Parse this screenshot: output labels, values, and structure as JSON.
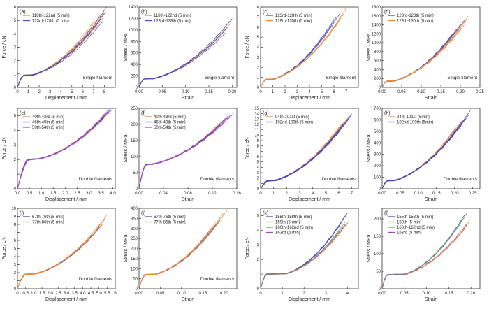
{
  "colors": {
    "blue": "#4a4ab4",
    "orange": "#ec8a3c",
    "purple": "#a24ec0",
    "green": "#6aa06a",
    "axis": "#333333"
  },
  "chart_data": [
    {
      "id": "a",
      "type": "line",
      "panel_label": "(a)",
      "xlabel": "Displacement / mm",
      "ylabel": "Force / cN",
      "xlim": [
        0,
        9
      ],
      "ylim": [
        0,
        6
      ],
      "xticks": [
        "0",
        "1",
        "2",
        "3",
        "4",
        "5",
        "6",
        "7",
        "8"
      ],
      "yticks": [
        "0",
        "1",
        "2",
        "3",
        "4",
        "5",
        "6"
      ],
      "annotation": "Single filament",
      "legend_position": "top-left",
      "curve": {
        "yield_x": 0.6,
        "plateau": 0.9,
        "flat": 0.8
      },
      "series": [
        {
          "name": "118th-122nd (5 min)",
          "color": "orange",
          "ends": [
            7.1,
            7.6,
            7.9,
            8.0,
            8.1
          ],
          "end_y": [
            5.0,
            5.4,
            5.2,
            5.6,
            5.9
          ]
        },
        {
          "name": "123rd-128th (5 min)",
          "color": "blue",
          "ends": [
            7.4,
            7.8,
            8.1,
            7.9,
            8.2
          ],
          "end_y": [
            4.8,
            5.3,
            5.6,
            5.0,
            6.0
          ]
        }
      ]
    },
    {
      "id": "b",
      "type": "line",
      "panel_label": "(b)",
      "xlabel": "Strain",
      "ylabel": "Stress / MPa",
      "xlim": [
        0,
        0.21
      ],
      "ylim": [
        0,
        1400
      ],
      "xticks": [
        "0.00",
        "0.05",
        "0.10",
        "0.15",
        "0.20"
      ],
      "yticks": [
        "0",
        "200",
        "400",
        "600",
        "800",
        "1000",
        "1200",
        "1400"
      ],
      "annotation": "Single filament",
      "legend_position": "top-left",
      "curve": {
        "yield_x": 0.012,
        "plateau": 150,
        "flat": 0.02
      },
      "series": [
        {
          "name": "118th-122nd (5 min)",
          "color": "orange",
          "ends": [
            0.175,
            0.185,
            0.19,
            0.195
          ],
          "end_y": [
            900,
            1000,
            1050,
            1100
          ]
        },
        {
          "name": "123rd-128th (5 min)",
          "color": "blue",
          "ends": [
            0.185,
            0.19,
            0.195,
            0.2
          ],
          "end_y": [
            950,
            1050,
            1150,
            1200
          ]
        }
      ]
    },
    {
      "id": "c",
      "type": "line",
      "panel_label": "(c)",
      "xlabel": "Displacement / mm",
      "ylabel": "Force / cN",
      "xlim": [
        0,
        8
      ],
      "ylim": [
        0,
        8
      ],
      "xticks": [
        "0",
        "1",
        "2",
        "3",
        "4",
        "5",
        "6",
        "7"
      ],
      "yticks": [
        "0",
        "1",
        "2",
        "3",
        "4",
        "5",
        "6",
        "7",
        "8"
      ],
      "annotation": "Single filament",
      "legend_position": "top-left",
      "curve": {
        "yield_x": 0.5,
        "plateau": 0.8,
        "flat": 0.6
      },
      "series": [
        {
          "name": "123rd-128th (5 min)",
          "color": "blue",
          "ends": [
            5.8,
            6.0,
            6.2,
            6.5
          ],
          "end_y": [
            6.2,
            6.8,
            7.0,
            7.4
          ]
        },
        {
          "name": "129th-135th (5 min)",
          "color": "orange",
          "ends": [
            6.3,
            6.6,
            6.8,
            7.0
          ],
          "end_y": [
            6.4,
            7.0,
            7.3,
            7.9
          ]
        }
      ]
    },
    {
      "id": "d",
      "type": "line",
      "panel_label": "(d)",
      "xlabel": "Strain",
      "ylabel": "Stress / MPa",
      "xlim": [
        0,
        0.25
      ],
      "ylim": [
        0,
        1800
      ],
      "xticks": [
        "0.00",
        "0.05",
        "0.10",
        "0.15",
        "0.20",
        "0.25"
      ],
      "yticks": [
        "0",
        "200",
        "400",
        "600",
        "800",
        "1000",
        "1200",
        "1400",
        "1600",
        "1800"
      ],
      "annotation": "Single filament",
      "legend_position": "top-left",
      "curve": {
        "yield_x": 0.012,
        "plateau": 140,
        "flat": 0.02
      },
      "series": [
        {
          "name": "123rd-128th (5 min)",
          "color": "blue",
          "ends": [
            0.18,
            0.19,
            0.2,
            0.21
          ],
          "end_y": [
            1200,
            1300,
            1400,
            1500
          ]
        },
        {
          "name": "129th-135th (5 min)",
          "color": "orange",
          "ends": [
            0.2,
            0.21,
            0.215,
            0.22
          ],
          "end_y": [
            1300,
            1400,
            1500,
            1600
          ]
        }
      ]
    },
    {
      "id": "e",
      "type": "line",
      "panel_label": "(e)",
      "xlabel": "Displacement / mm",
      "ylabel": "Force / cN",
      "xlim": [
        0,
        4.1
      ],
      "ylim": [
        0,
        5.5
      ],
      "xticks": [
        "0.0",
        "0.5",
        "1.0",
        "1.5",
        "2.0",
        "2.5",
        "3.0",
        "3.5",
        "4.0"
      ],
      "yticks": [
        "0",
        "1",
        "2",
        "3",
        "4",
        "5"
      ],
      "annotation": "Double filaments",
      "legend_position": "top-left",
      "curve": {
        "yield_x": 0.5,
        "plateau": 2.0,
        "flat": 0.45
      },
      "series": [
        {
          "name": "40th-43rd (5 min)",
          "color": "orange",
          "ends": [
            3.5,
            3.6,
            3.7,
            3.8
          ],
          "end_y": [
            4.8,
            5.0,
            5.2,
            5.4
          ]
        },
        {
          "name": "46th-49th (5 min)",
          "color": "blue",
          "ends": [
            3.6,
            3.7,
            3.8,
            3.9
          ],
          "end_y": [
            4.9,
            5.1,
            5.3,
            5.5
          ]
        },
        {
          "name": "50th-54th (5 min)",
          "color": "purple",
          "ends": [
            3.7,
            3.8,
            3.9,
            4.0
          ],
          "end_y": [
            5.0,
            5.2,
            5.4,
            5.5
          ]
        }
      ]
    },
    {
      "id": "f",
      "type": "line",
      "panel_label": "(f)",
      "xlabel": "Strain",
      "ylabel": "Stress / MPa",
      "xlim": [
        0,
        0.16
      ],
      "ylim": [
        0,
        250
      ],
      "xticks": [
        "0.00",
        "0.04",
        "0.08",
        "0.12",
        "0.16"
      ],
      "yticks": [
        "0",
        "50",
        "100",
        "150",
        "200",
        "250"
      ],
      "annotation": "Double filaments",
      "legend_position": "top-left",
      "curve": {
        "yield_x": 0.012,
        "plateau": 75,
        "flat": 0.012
      },
      "series": [
        {
          "name": "40th-43rd (5 min)",
          "color": "orange",
          "ends": [
            0.13,
            0.135,
            0.14,
            0.145
          ],
          "end_y": [
            200,
            210,
            215,
            225
          ]
        },
        {
          "name": "46th-49th (5 min)",
          "color": "blue",
          "ends": [
            0.135,
            0.14,
            0.145,
            0.15
          ],
          "end_y": [
            205,
            215,
            225,
            230
          ]
        },
        {
          "name": "50th-54th (5 min)",
          "color": "purple",
          "ends": [
            0.14,
            0.145,
            0.15,
            0.155
          ],
          "end_y": [
            210,
            220,
            230,
            235
          ]
        }
      ]
    },
    {
      "id": "g",
      "type": "line",
      "panel_label": "(g)",
      "xlabel": "Displacement / mm",
      "ylabel": "Force / cN",
      "xlim": [
        0,
        7.5
      ],
      "ylim": [
        0,
        15
      ],
      "xticks": [
        "0",
        "1",
        "2",
        "3",
        "4",
        "5",
        "6",
        "7"
      ],
      "yticks": [
        "0",
        "1",
        "2",
        "3",
        "4",
        "5",
        "6",
        "7",
        "8",
        "9",
        "10",
        "11",
        "12",
        "13",
        "14",
        "15"
      ],
      "annotation": "Double filaments",
      "legend_position": "top-left",
      "curve": {
        "yield_x": 0.6,
        "plateau": 1.5,
        "flat": 0.5
      },
      "series": [
        {
          "name": "94th-101st (5 min)",
          "color": "orange",
          "ends": [
            5.8,
            6.0,
            6.2,
            6.4,
            6.6,
            6.8
          ],
          "end_y": [
            10.5,
            11.5,
            12.0,
            12.5,
            13.0,
            13.5
          ]
        },
        {
          "name": "102nd-109th (5 min)",
          "color": "blue",
          "ends": [
            6.0,
            6.3,
            6.5,
            6.7,
            6.9,
            7.0
          ],
          "end_y": [
            11.0,
            12.0,
            12.5,
            13.0,
            13.5,
            14.0
          ]
        }
      ]
    },
    {
      "id": "h",
      "type": "line",
      "panel_label": "(h)",
      "xlabel": "Strain",
      "ylabel": "Stress / MPa",
      "xlim": [
        0,
        0.27
      ],
      "ylim": [
        0,
        700
      ],
      "xticks": [
        "0.00",
        "0.05",
        "0.10",
        "0.15",
        "0.20",
        "0.25"
      ],
      "yticks": [
        "0",
        "100",
        "200",
        "300",
        "400",
        "500",
        "600",
        "700"
      ],
      "annotation": "Double filaments",
      "legend_position": "top-left",
      "curve": {
        "yield_x": 0.015,
        "plateau": 70,
        "flat": 0.02
      },
      "series": [
        {
          "name": "94th-101st (5min)",
          "color": "orange",
          "ends": [
            0.2,
            0.21,
            0.22,
            0.23,
            0.235
          ],
          "end_y": [
            520,
            560,
            590,
            620,
            650
          ]
        },
        {
          "name": "102nd-109th (5min)",
          "color": "blue",
          "ends": [
            0.21,
            0.22,
            0.23,
            0.24,
            0.245
          ],
          "end_y": [
            540,
            580,
            610,
            650,
            690
          ]
        }
      ]
    },
    {
      "id": "i",
      "type": "line",
      "panel_label": "(i)",
      "xlabel": "Displacement / mm",
      "ylabel": "Force / cN",
      "xlim": [
        0,
        6
      ],
      "ylim": [
        0,
        10
      ],
      "xticks": [
        "0",
        "0.5",
        "1.0",
        "1.5",
        "2.0",
        "2.5",
        "3.0",
        "3.5",
        "4.0",
        "4.5",
        "5.0",
        "5.5",
        "6"
      ],
      "yticks": [
        "0",
        "1",
        "2",
        "3",
        "4",
        "5",
        "6",
        "7",
        "8",
        "9",
        "10"
      ],
      "annotation": "Double filaments",
      "legend_position": "top-left",
      "curve": {
        "yield_x": 0.5,
        "plateau": 1.8,
        "flat": 0.6
      },
      "series": [
        {
          "name": "67th-76th (5 min)",
          "color": "blue",
          "ends": [
            4.8,
            5.0,
            5.1,
            5.2
          ],
          "end_y": [
            7.0,
            7.5,
            7.8,
            8.0
          ]
        },
        {
          "name": "77th-86th (5 min)",
          "color": "orange",
          "ends": [
            5.0,
            5.2,
            5.3,
            5.4,
            5.5
          ],
          "end_y": [
            7.5,
            8.0,
            8.5,
            8.8,
            9.2
          ]
        }
      ]
    },
    {
      "id": "j",
      "type": "line",
      "panel_label": "(j)",
      "xlabel": "Strain",
      "ylabel": "Stress / MPa",
      "xlim": [
        0,
        0.23
      ],
      "ylim": [
        0,
        400
      ],
      "xticks": [
        "0.00",
        "0.05",
        "0.10",
        "0.15",
        "0.20"
      ],
      "yticks": [
        "0",
        "50",
        "100",
        "150",
        "200",
        "250",
        "300",
        "350",
        "400"
      ],
      "annotation": "Double filaments",
      "legend_position": "top-left",
      "curve": {
        "yield_x": 0.015,
        "plateau": 70,
        "flat": 0.025
      },
      "series": [
        {
          "name": "67th-76th (5 min)",
          "color": "blue",
          "ends": [
            0.17,
            0.18,
            0.185,
            0.19
          ],
          "end_y": [
            300,
            320,
            330,
            340
          ]
        },
        {
          "name": "77th-86th (5 min)",
          "color": "orange",
          "ends": [
            0.18,
            0.19,
            0.2,
            0.21
          ],
          "end_y": [
            330,
            350,
            380,
            400
          ]
        }
      ]
    },
    {
      "id": "k",
      "type": "line",
      "panel_label": "(k)",
      "xlabel": "Displacement / mm",
      "ylabel": "Force / cN",
      "xlim": [
        0,
        4.5
      ],
      "ylim": [
        0,
        5.5
      ],
      "xticks": [
        "0",
        "1",
        "2",
        "3",
        "4"
      ],
      "yticks": [
        "0",
        "1",
        "2",
        "3",
        "4",
        "5"
      ],
      "annotation": "",
      "legend_position": "top-left",
      "curve": {
        "yield_x": 0.3,
        "plateau": 1.0,
        "flat": 0.9
      },
      "series": [
        {
          "name": "155th-158th (5 min)",
          "color": "blue",
          "ends": [
            3.7,
            3.8,
            3.9,
            4.0
          ],
          "end_y": [
            4.5,
            4.8,
            5.0,
            5.2
          ]
        },
        {
          "name": "159th (5 min)",
          "color": "orange",
          "ends": [
            3.8,
            3.9,
            4.0,
            4.05
          ],
          "end_y": [
            4.2,
            4.4,
            4.5,
            4.6
          ]
        },
        {
          "name": "160th-162nd (5 min)",
          "color": "green",
          "ends": [
            3.6,
            3.8,
            3.9
          ],
          "end_y": [
            4.0,
            4.3,
            4.6
          ]
        },
        {
          "name": "163rd (5 min)",
          "color": "purple",
          "ends": [
            3.9
          ],
          "end_y": [
            4.4
          ]
        }
      ]
    },
    {
      "id": "l",
      "type": "line",
      "panel_label": "(l)",
      "xlabel": "Strain",
      "ylabel": "Stress / MPa",
      "xlim": [
        0,
        0.22
      ],
      "ylim": [
        0,
        230
      ],
      "xticks": [
        "0.00",
        "0.05",
        "0.10",
        "0.15",
        "0.20"
      ],
      "yticks": [
        "0",
        "50",
        "100",
        "150",
        "200"
      ],
      "annotation": "",
      "legend_position": "top-left",
      "curve": {
        "yield_x": 0.012,
        "plateau": 40,
        "flat": 0.04
      },
      "series": [
        {
          "name": "155th-158th (5 min)",
          "color": "blue",
          "ends": [
            0.17,
            0.18,
            0.185,
            0.19
          ],
          "end_y": [
            180,
            200,
            210,
            215
          ]
        },
        {
          "name": "159th (5 min)",
          "color": "orange",
          "ends": [
            0.185,
            0.19,
            0.195
          ],
          "end_y": [
            170,
            180,
            190
          ]
        },
        {
          "name": "160th-162nd (5 min)",
          "color": "green",
          "ends": [
            0.175,
            0.18,
            0.19
          ],
          "end_y": [
            190,
            200,
            215
          ]
        },
        {
          "name": "163rd (5 min)",
          "color": "purple",
          "ends": [
            0.19
          ],
          "end_y": [
            185
          ]
        }
      ]
    }
  ]
}
